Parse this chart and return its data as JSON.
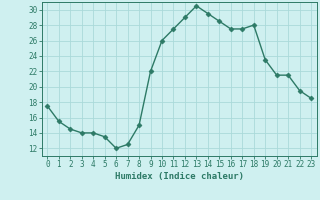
{
  "x": [
    0,
    1,
    2,
    3,
    4,
    5,
    6,
    7,
    8,
    9,
    10,
    11,
    12,
    13,
    14,
    15,
    16,
    17,
    18,
    19,
    20,
    21,
    22,
    23
  ],
  "y": [
    17.5,
    15.5,
    14.5,
    14.0,
    14.0,
    13.5,
    12.0,
    12.5,
    15.0,
    22.0,
    26.0,
    27.5,
    29.0,
    30.5,
    29.5,
    28.5,
    27.5,
    27.5,
    28.0,
    23.5,
    21.5,
    21.5,
    19.5,
    18.5
  ],
  "line_color": "#2d7a66",
  "marker": "D",
  "marker_size": 2.5,
  "bg_color": "#cff0f0",
  "grid_color": "#aadada",
  "xlabel": "Humidex (Indice chaleur)",
  "ylabel": "",
  "xlim": [
    -0.5,
    23.5
  ],
  "ylim": [
    11,
    31
  ],
  "yticks": [
    12,
    14,
    16,
    18,
    20,
    22,
    24,
    26,
    28,
    30
  ],
  "xticks": [
    0,
    1,
    2,
    3,
    4,
    5,
    6,
    7,
    8,
    9,
    10,
    11,
    12,
    13,
    14,
    15,
    16,
    17,
    18,
    19,
    20,
    21,
    22,
    23
  ],
  "label_fontsize": 6.5,
  "tick_fontsize": 5.5
}
